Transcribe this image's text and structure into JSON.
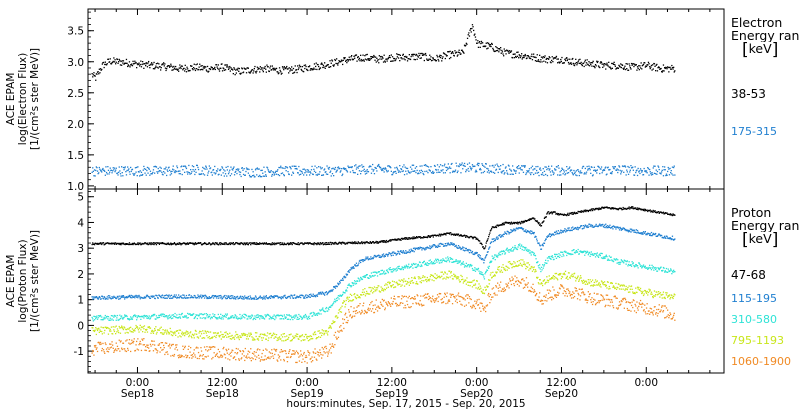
{
  "figure": {
    "xlabel": "hours:minutes, Sep. 17, 2015 - Sep. 20, 2015"
  },
  "chart_data": [
    {
      "type": "scatter",
      "panel": "electron",
      "ylabel_lines": [
        "ACE EPAM",
        "log(Electron Flux)",
        "[1/(cm²s ster MeV)]"
      ],
      "ylim": [
        0.95,
        3.85
      ],
      "yticks": [
        1.0,
        1.5,
        2.0,
        2.5,
        3.0,
        3.5
      ],
      "ytick_labels": [
        "1.0",
        "1.5",
        "2.0",
        "2.5",
        "3.0",
        "3.5"
      ],
      "legend_title": [
        "Electron",
        "Energy ranges"
      ],
      "legend_unit": "keV",
      "x_unit": "hours since 2015-09-17 00:00",
      "xlim": [
        17.0,
        107.0
      ],
      "series": [
        {
          "name": "38-53",
          "color": "#000000",
          "x": [
            17.5,
            18,
            19,
            20,
            22,
            24,
            26,
            28,
            30,
            32,
            34,
            36,
            38,
            40,
            42,
            44,
            46,
            48,
            50,
            52,
            54,
            56,
            58,
            60,
            62,
            64,
            66,
            68,
            70,
            71.3,
            72,
            74,
            76,
            78,
            80,
            82,
            84,
            86,
            88,
            90,
            92,
            94,
            96,
            98,
            100
          ],
          "values": [
            2.8,
            2.75,
            2.95,
            3.02,
            3.0,
            2.97,
            2.95,
            2.93,
            2.9,
            2.92,
            2.9,
            2.92,
            2.85,
            2.88,
            2.9,
            2.87,
            2.88,
            2.92,
            2.95,
            3.0,
            3.05,
            3.08,
            3.05,
            3.08,
            3.08,
            3.1,
            3.05,
            3.12,
            3.15,
            3.6,
            3.3,
            3.25,
            3.15,
            3.12,
            3.08,
            3.05,
            3.05,
            3.0,
            2.98,
            2.95,
            2.95,
            2.92,
            2.95,
            2.9,
            2.9
          ]
        },
        {
          "name": "175-315",
          "color": "#1f7fd0",
          "x": [
            17.5,
            20,
            24,
            28,
            32,
            36,
            40,
            44,
            48,
            52,
            56,
            60,
            64,
            68,
            72,
            76,
            80,
            84,
            88,
            92,
            96,
            100
          ],
          "values": [
            1.25,
            1.25,
            1.25,
            1.25,
            1.27,
            1.25,
            1.23,
            1.25,
            1.25,
            1.25,
            1.28,
            1.27,
            1.27,
            1.3,
            1.3,
            1.28,
            1.25,
            1.26,
            1.25,
            1.27,
            1.25,
            1.25
          ]
        }
      ]
    },
    {
      "type": "scatter",
      "panel": "proton",
      "ylabel_lines": [
        "ACE EPAM",
        "log(Proton Flux)",
        "[1/(cm²s ster MeV)]"
      ],
      "ylim": [
        -1.85,
        5.3
      ],
      "yticks": [
        -1,
        0,
        1,
        2,
        3,
        4,
        5
      ],
      "ytick_labels": [
        "-1",
        "0",
        "1",
        "2",
        "3",
        "4",
        "5"
      ],
      "legend_title": [
        "Proton",
        "Energy ranges"
      ],
      "legend_unit": "keV",
      "x_unit": "hours since 2015-09-17 00:00",
      "xlim": [
        17.0,
        107.0
      ],
      "series": [
        {
          "name": "47-68",
          "color": "#000000",
          "x": [
            17.5,
            30,
            50,
            58,
            62,
            66,
            68,
            70,
            72,
            73,
            74,
            76,
            78,
            80,
            81,
            82,
            83,
            84,
            86,
            88,
            90,
            92,
            94,
            96,
            98,
            100
          ],
          "values": [
            3.2,
            3.2,
            3.2,
            3.25,
            3.4,
            3.5,
            3.6,
            3.5,
            3.4,
            3.0,
            3.8,
            4.0,
            4.0,
            4.2,
            3.9,
            4.4,
            4.4,
            4.3,
            4.4,
            4.5,
            4.6,
            4.55,
            4.6,
            4.5,
            4.4,
            4.3
          ]
        },
        {
          "name": "115-195",
          "color": "#1f7fd0",
          "x": [
            17.5,
            30,
            40,
            48,
            51,
            53,
            54,
            56,
            60,
            64,
            68,
            70,
            72,
            73,
            74,
            76,
            78,
            80,
            81,
            82,
            84,
            86,
            88,
            90,
            92,
            94,
            96,
            98,
            100
          ],
          "values": [
            1.1,
            1.15,
            1.1,
            1.15,
            1.3,
            1.8,
            2.2,
            2.6,
            2.8,
            3.0,
            3.2,
            3.0,
            2.8,
            2.5,
            3.3,
            3.6,
            3.8,
            3.6,
            3.0,
            3.5,
            3.7,
            3.8,
            3.9,
            3.9,
            3.8,
            3.7,
            3.6,
            3.5,
            3.4
          ]
        },
        {
          "name": "310-580",
          "color": "#2ee3d6",
          "x": [
            17.5,
            25,
            30,
            40,
            48,
            51,
            53,
            54,
            56,
            60,
            64,
            68,
            70,
            72,
            73,
            74,
            76,
            78,
            80,
            81,
            82,
            84,
            86,
            88,
            90,
            92,
            94,
            96,
            98,
            100
          ],
          "values": [
            0.3,
            0.35,
            0.4,
            0.35,
            0.35,
            0.7,
            1.3,
            1.6,
            1.9,
            2.2,
            2.4,
            2.6,
            2.4,
            2.2,
            1.9,
            2.6,
            2.9,
            3.1,
            2.8,
            2.2,
            2.6,
            2.8,
            2.9,
            2.8,
            2.7,
            2.5,
            2.4,
            2.3,
            2.2,
            2.1
          ]
        },
        {
          "name": "795-1193",
          "color": "#c8e61a",
          "x": [
            17.5,
            25,
            30,
            40,
            48,
            51,
            53,
            54,
            56,
            60,
            64,
            68,
            70,
            72,
            73,
            74,
            76,
            78,
            80,
            81,
            82,
            84,
            86,
            88,
            90,
            92,
            94,
            96,
            98,
            100
          ],
          "values": [
            -0.2,
            -0.1,
            -0.3,
            -0.4,
            -0.45,
            -0.2,
            0.8,
            1.1,
            1.3,
            1.6,
            1.8,
            2.0,
            1.8,
            1.6,
            1.3,
            2.0,
            2.3,
            2.5,
            2.2,
            1.6,
            1.8,
            2.0,
            1.9,
            1.7,
            1.6,
            1.5,
            1.4,
            1.3,
            1.2,
            1.1
          ]
        },
        {
          "name": "1060-1900",
          "color": "#f08a24",
          "x": [
            17.5,
            25,
            30,
            40,
            48,
            51,
            53,
            54,
            56,
            60,
            64,
            68,
            70,
            72,
            73,
            74,
            76,
            78,
            80,
            81,
            82,
            84,
            86,
            88,
            90,
            92,
            94,
            96,
            98,
            100
          ],
          "values": [
            -0.9,
            -0.7,
            -1.0,
            -1.1,
            -1.2,
            -1.0,
            0.1,
            0.5,
            0.7,
            0.9,
            1.0,
            1.1,
            1.0,
            0.9,
            0.6,
            1.3,
            1.6,
            1.8,
            1.5,
            1.0,
            1.2,
            1.4,
            1.3,
            1.1,
            1.0,
            0.9,
            0.8,
            0.7,
            0.6,
            0.4
          ]
        }
      ]
    }
  ],
  "xaxis": {
    "ticks_major": [
      24,
      36,
      48,
      60,
      72,
      84,
      96
    ],
    "tick_time_labels": [
      "0:00",
      "12:00",
      "0:00",
      "12:00",
      "0:00",
      "12:00",
      "0:00"
    ],
    "tick_date_labels": [
      "Sep18",
      "Sep18",
      "Sep19",
      "Sep19",
      "Sep20",
      "Sep20",
      ""
    ],
    "ticks_minor_step_hours": 3
  },
  "styles": {
    "axis_color": "#000000",
    "background": "#ffffff"
  }
}
